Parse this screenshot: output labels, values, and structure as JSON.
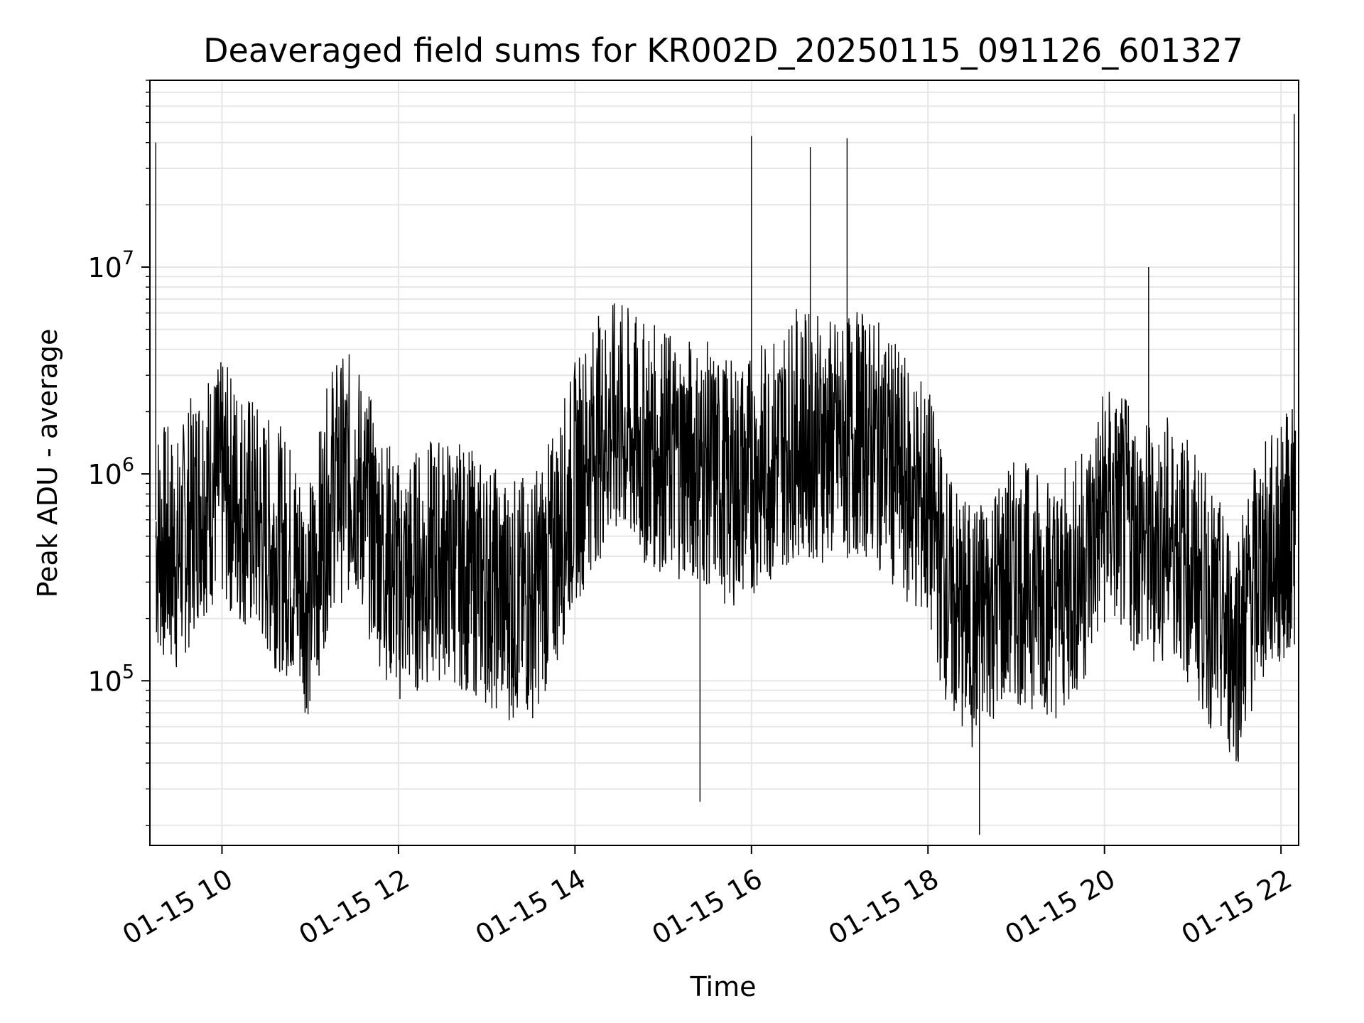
{
  "chart_data": {
    "type": "line",
    "title": "Deaveraged field sums for KR002D_20250115_091126_601327",
    "xlabel": "Time",
    "ylabel": "Peak ADU - average",
    "yscale": "log",
    "grid": true,
    "line_color": "#000000",
    "grid_color": "#e6e6e6",
    "xlim": [
      "2025-01-15 09:11",
      "2025-01-15 22:12"
    ],
    "ylim": [
      16000,
      80000000
    ],
    "x_ticks": [
      {
        "value": "2025-01-15 10:00",
        "label": "01-15 10"
      },
      {
        "value": "2025-01-15 12:00",
        "label": "01-15 12"
      },
      {
        "value": "2025-01-15 14:00",
        "label": "01-15 14"
      },
      {
        "value": "2025-01-15 16:00",
        "label": "01-15 16"
      },
      {
        "value": "2025-01-15 18:00",
        "label": "01-15 18"
      },
      {
        "value": "2025-01-15 20:00",
        "label": "01-15 20"
      },
      {
        "value": "2025-01-15 22:00",
        "label": "01-15 22"
      }
    ],
    "y_ticks": [
      {
        "value": 100000,
        "base": "10",
        "exp": "5"
      },
      {
        "value": 1000000,
        "base": "10",
        "exp": "6"
      },
      {
        "value": 10000000,
        "base": "10",
        "exp": "7"
      }
    ],
    "series": [
      {
        "x": [
          "2025-01-15 09:15",
          "2025-01-15 09:30",
          "2025-01-15 09:45",
          "2025-01-15 10:00",
          "2025-01-15 10:15",
          "2025-01-15 10:30",
          "2025-01-15 10:45",
          "2025-01-15 11:00",
          "2025-01-15 11:15",
          "2025-01-15 11:30",
          "2025-01-15 11:45",
          "2025-01-15 12:00",
          "2025-01-15 12:15",
          "2025-01-15 12:30",
          "2025-01-15 12:45",
          "2025-01-15 13:00",
          "2025-01-15 13:15",
          "2025-01-15 13:30",
          "2025-01-15 13:45",
          "2025-01-15 14:00",
          "2025-01-15 14:15",
          "2025-01-15 14:30",
          "2025-01-15 14:45",
          "2025-01-15 15:00",
          "2025-01-15 15:15",
          "2025-01-15 15:30",
          "2025-01-15 15:45",
          "2025-01-15 16:00",
          "2025-01-15 16:15",
          "2025-01-15 16:30",
          "2025-01-15 16:45",
          "2025-01-15 17:00",
          "2025-01-15 17:15",
          "2025-01-15 17:30",
          "2025-01-15 17:45",
          "2025-01-15 18:00",
          "2025-01-15 18:15",
          "2025-01-15 18:30",
          "2025-01-15 18:45",
          "2025-01-15 19:00",
          "2025-01-15 19:15",
          "2025-01-15 19:30",
          "2025-01-15 19:45",
          "2025-01-15 20:00",
          "2025-01-15 20:15",
          "2025-01-15 20:30",
          "2025-01-15 20:45",
          "2025-01-15 21:00",
          "2025-01-15 21:15",
          "2025-01-15 21:30",
          "2025-01-15 21:45",
          "2025-01-15 22:00",
          "2025-01-15 22:10"
        ],
        "y": [
          500000,
          400000,
          800000,
          900000,
          700000,
          500000,
          400000,
          250000,
          900000,
          1000000,
          500000,
          300000,
          350000,
          400000,
          350000,
          300000,
          250000,
          250000,
          400000,
          900000,
          1500000,
          1800000,
          1400000,
          1300000,
          1200000,
          1100000,
          900000,
          1000000,
          1200000,
          1600000,
          1500000,
          1400000,
          1600000,
          1300000,
          900000,
          700000,
          250000,
          180000,
          250000,
          300000,
          280000,
          250000,
          350000,
          700000,
          600000,
          450000,
          500000,
          350000,
          200000,
          150000,
          350000,
          450000,
          600000
        ],
        "spikes": [
          {
            "x": "2025-01-15 09:15",
            "y": 40000000
          },
          {
            "x": "2025-01-15 16:00",
            "y": 43000000
          },
          {
            "x": "2025-01-15 16:40",
            "y": 38000000
          },
          {
            "x": "2025-01-15 17:05",
            "y": 42000000
          },
          {
            "x": "2025-01-15 20:30",
            "y": 10000000
          },
          {
            "x": "2025-01-15 22:09",
            "y": 55000000
          },
          {
            "x": "2025-01-15 18:35",
            "y": 18000
          },
          {
            "x": "2025-01-15 15:25",
            "y": 26000
          }
        ]
      }
    ]
  }
}
